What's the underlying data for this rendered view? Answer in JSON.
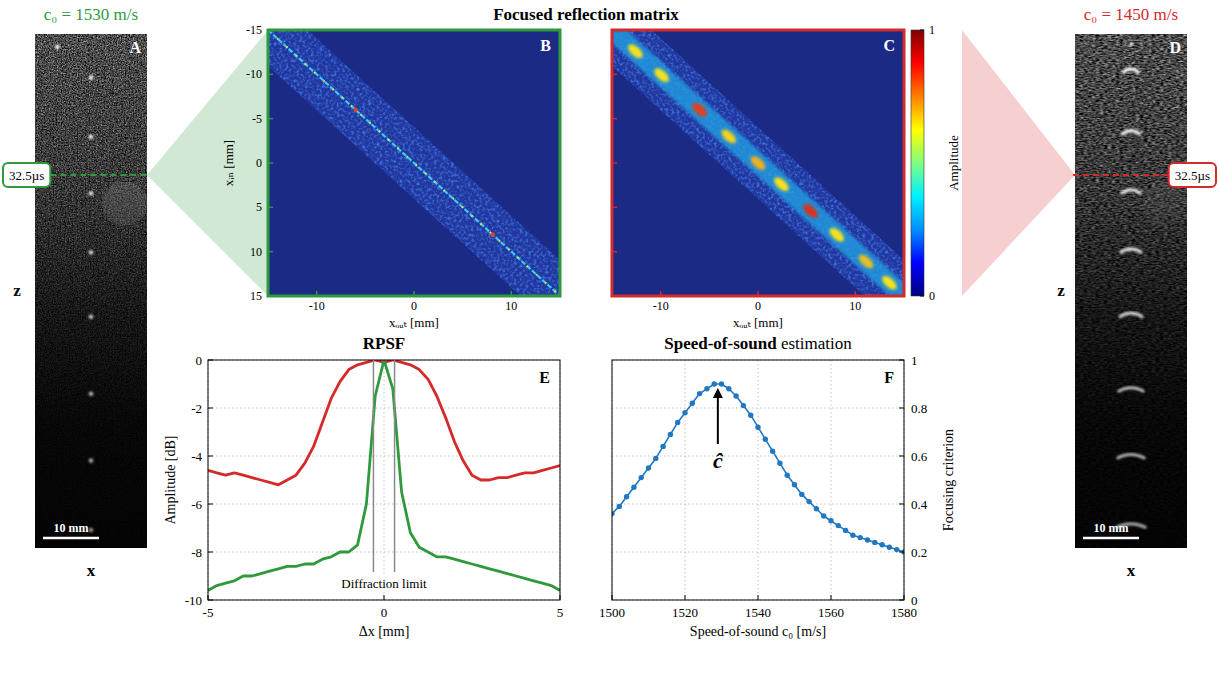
{
  "group_title": "Focused reflection matrix",
  "chart_data": [
    {
      "type": "image",
      "panel": "A",
      "title": "c₀ = 1530 m/s",
      "color": "#2e9a3c",
      "xlabel": "x",
      "ylabel": "z",
      "annotation": "32.5µs",
      "scale_bar": "10 mm"
    },
    {
      "type": "heatmap",
      "panel": "B",
      "color": "#2e9a3c",
      "xlabel": "xₒᵤₜ [mm]",
      "ylabel": "xᵢₙ [mm]",
      "xlim": [
        -15,
        15
      ],
      "ylim": [
        -15,
        15
      ],
      "xticks": [
        -10,
        0,
        10
      ],
      "yticks": [
        -15,
        -10,
        -5,
        0,
        5,
        10,
        15
      ]
    },
    {
      "type": "heatmap",
      "panel": "C",
      "color": "#d42a2a",
      "xlabel": "xₒᵤₜ [mm]",
      "xlim": [
        -15,
        15
      ],
      "ylim": [
        -15,
        15
      ],
      "xticks": [
        -10,
        0,
        10
      ],
      "yticks": [
        -15,
        -10,
        -5,
        0,
        5,
        10,
        15
      ],
      "tick_labels": "x",
      "colorbar": {
        "label": "Amplitude",
        "range": [
          0,
          1
        ],
        "ticks": [
          0,
          1
        ]
      }
    },
    {
      "type": "image",
      "panel": "D",
      "title": "c₀ = 1450 m/s",
      "color": "#d42a2a",
      "xlabel": "x",
      "ylabel": "z",
      "annotation": "32.5µs",
      "scale_bar": "10 mm"
    },
    {
      "type": "line",
      "panel": "E",
      "title": "RPSF",
      "xlabel": "Δx [mm]",
      "ylabel": "Amplitude [dB]",
      "x": [
        -5,
        -4.75,
        -4.5,
        -4.25,
        -4,
        -3.75,
        -3.5,
        -3.25,
        -3,
        -2.75,
        -2.5,
        -2.25,
        -2,
        -1.75,
        -1.5,
        -1.25,
        -1,
        -0.75,
        -0.5,
        -0.25,
        0,
        0.25,
        0.5,
        0.75,
        1,
        1.25,
        1.5,
        1.75,
        2,
        2.25,
        2.5,
        2.75,
        3,
        3.25,
        3.5,
        3.75,
        4,
        4.25,
        4.5,
        4.75,
        5
      ],
      "series": [
        {
          "color": "#d42a2a",
          "line_style": "solid",
          "values": [
            -4.6,
            -4.7,
            -4.8,
            -4.7,
            -4.8,
            -4.9,
            -5,
            -5.1,
            -5.2,
            -5,
            -4.8,
            -4.3,
            -3.6,
            -2.6,
            -1.6,
            -0.9,
            -0.4,
            -0.2,
            -0.1,
            0,
            -0.1,
            0,
            -0.1,
            -0.2,
            -0.4,
            -0.8,
            -1.5,
            -2.4,
            -3.4,
            -4.2,
            -4.8,
            -5,
            -5,
            -4.9,
            -4.9,
            -4.8,
            -4.7,
            -4.7,
            -4.6,
            -4.5,
            -4.4
          ]
        },
        {
          "color": "#2e9a3c",
          "line_style": "solid",
          "values": [
            -9.6,
            -9.4,
            -9.3,
            -9.2,
            -9,
            -9,
            -8.9,
            -8.8,
            -8.7,
            -8.6,
            -8.6,
            -8.5,
            -8.5,
            -8.3,
            -8.2,
            -8,
            -8,
            -7.7,
            -6,
            -1.5,
            0,
            -1.2,
            -5.5,
            -7.2,
            -7.8,
            -8,
            -8.2,
            -8.2,
            -8.3,
            -8.4,
            -8.5,
            -8.6,
            -8.7,
            -8.8,
            -8.9,
            -9,
            -9.1,
            -9.2,
            -9.3,
            -9.4,
            -9.6
          ]
        }
      ],
      "xlim": [
        -5,
        5
      ],
      "ylim": [
        -10,
        0
      ],
      "xticks": [
        -5,
        0,
        5
      ],
      "yticks": [
        -10,
        -8,
        -6,
        -4,
        -2,
        0
      ],
      "grid": true,
      "annotations": [
        {
          "text": "Diffraction limit",
          "x": [
            -0.3,
            0.3
          ]
        }
      ]
    },
    {
      "type": "line",
      "panel": "F",
      "title": "Speed-of-sound estimation",
      "xlabel": "Speed-of-sound c₀ [m/s]",
      "ylabel": "Focusing criterion",
      "x": [
        1500,
        1502,
        1504,
        1506,
        1508,
        1510,
        1512,
        1514,
        1516,
        1518,
        1520,
        1522,
        1524,
        1526,
        1528,
        1530,
        1532,
        1534,
        1536,
        1538,
        1540,
        1542,
        1544,
        1546,
        1548,
        1550,
        1552,
        1554,
        1556,
        1558,
        1560,
        1562,
        1564,
        1566,
        1568,
        1570,
        1572,
        1574,
        1576,
        1578,
        1580
      ],
      "series": [
        {
          "color": "#1f78c1",
          "marker": "circle",
          "line_style": "solid",
          "axis": "y2",
          "values": [
            0.36,
            0.39,
            0.43,
            0.47,
            0.51,
            0.55,
            0.59,
            0.64,
            0.69,
            0.74,
            0.78,
            0.82,
            0.86,
            0.88,
            0.9,
            0.9,
            0.88,
            0.85,
            0.81,
            0.77,
            0.72,
            0.67,
            0.62,
            0.57,
            0.52,
            0.48,
            0.44,
            0.41,
            0.38,
            0.35,
            0.33,
            0.31,
            0.29,
            0.27,
            0.26,
            0.25,
            0.24,
            0.23,
            0.22,
            0.21,
            0.2
          ]
        }
      ],
      "xlim": [
        1500,
        1580
      ],
      "y2lim": [
        0,
        1
      ],
      "xticks": [
        1500,
        1520,
        1540,
        1560,
        1580
      ],
      "y2ticks": [
        0,
        0.2,
        0.4,
        0.6,
        0.8,
        1
      ],
      "grid": true,
      "annotations": [
        {
          "text": "ĉ",
          "x": 1529,
          "y": 0.9
        }
      ]
    }
  ]
}
